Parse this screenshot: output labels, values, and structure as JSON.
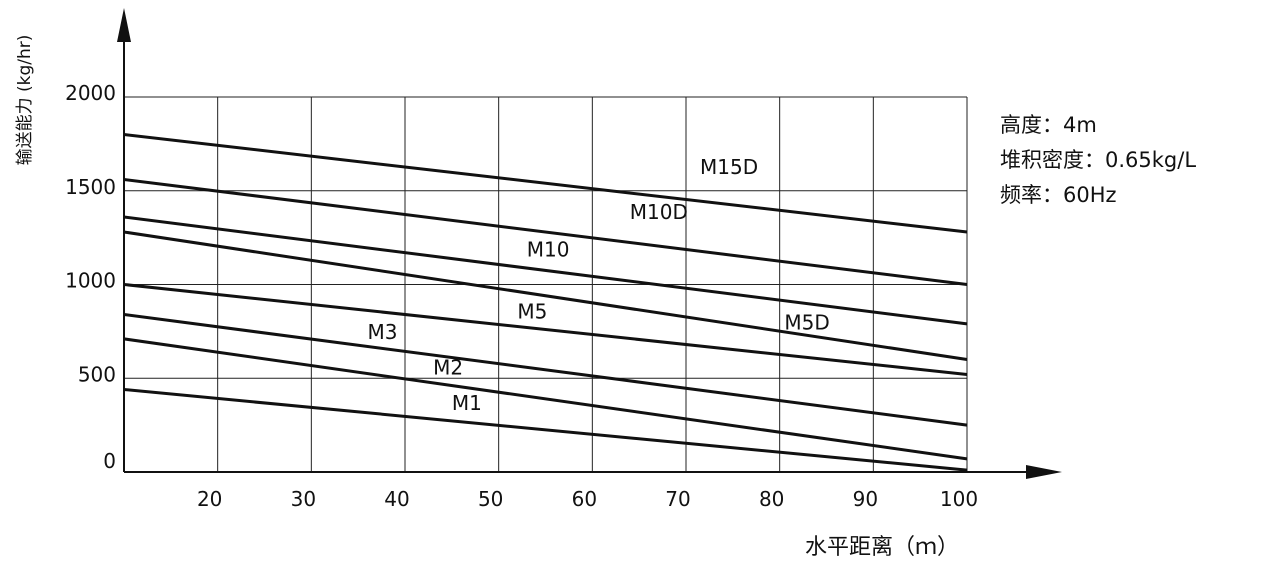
{
  "chart_data": {
    "type": "line",
    "title": "",
    "xlabel": "水平距离（ｍ）",
    "ylabel": "输送能力 (kg/hr)",
    "xlim": [
      10,
      100
    ],
    "ylim": [
      0,
      2000
    ],
    "x_ticks": [
      "20",
      "30",
      "40",
      "50",
      "60",
      "70",
      "80",
      "90",
      "100"
    ],
    "y_ticks": [
      "0",
      "500",
      "1000",
      "1500",
      "2000"
    ],
    "grid": true,
    "series": [
      {
        "name": "M15D",
        "x": [
          10,
          100
        ],
        "y": [
          1800,
          1280
        ],
        "label_x": 71.5,
        "label_y": 1590
      },
      {
        "name": "M10D",
        "x": [
          10,
          100
        ],
        "y": [
          1560,
          1000
        ],
        "label_x": 64,
        "label_y": 1350
      },
      {
        "name": "M10",
        "x": [
          10,
          100
        ],
        "y": [
          1360,
          790
        ],
        "label_x": 53,
        "label_y": 1150
      },
      {
        "name": "M5D",
        "x": [
          10,
          100
        ],
        "y": [
          1280,
          600
        ],
        "label_x": 80.5,
        "label_y": 760
      },
      {
        "name": "M5",
        "x": [
          10,
          100
        ],
        "y": [
          1000,
          520
        ],
        "label_x": 52,
        "label_y": 820
      },
      {
        "name": "M3",
        "x": [
          10,
          100
        ],
        "y": [
          840,
          250
        ],
        "label_x": 36,
        "label_y": 710
      },
      {
        "name": "M2",
        "x": [
          10,
          100
        ],
        "y": [
          710,
          70
        ],
        "label_x": 43,
        "label_y": 520
      },
      {
        "name": "M1",
        "x": [
          10,
          100
        ],
        "y": [
          440,
          10
        ],
        "label_x": 45,
        "label_y": 330
      }
    ]
  },
  "notes": {
    "height": "高度：4m",
    "density": "堆积密度：0.65kg/L",
    "frequency": "频率：60Hz"
  }
}
